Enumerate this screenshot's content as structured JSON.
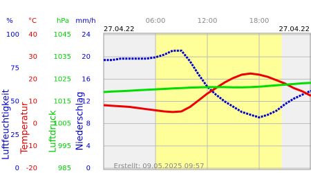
{
  "chart_data": {
    "type": "line",
    "date_left": "27.04.22",
    "date_right": "27.04.22",
    "footer": "Erstellt: 09.05.2025 09:57",
    "xlim": [
      0,
      24
    ],
    "xticks": [
      {
        "value": 6,
        "label": "06:00"
      },
      {
        "value": 12,
        "label": "12:00"
      },
      {
        "value": 18,
        "label": "18:00"
      }
    ],
    "daylight": [
      6,
      20.6
    ],
    "grid": true,
    "axes": [
      {
        "unit": "%",
        "label": "Luftfeuchtigkeit",
        "color": "#0000cc",
        "lim": [
          0,
          100
        ],
        "ticks": [
          0,
          25,
          50,
          75,
          100
        ]
      },
      {
        "unit": "°C",
        "label": "Temperatur",
        "color": "#dd0000",
        "lim": [
          -20,
          40
        ],
        "ticks": [
          -20,
          -10,
          0,
          10,
          20,
          30,
          40
        ]
      },
      {
        "unit": "hPa",
        "label": "Luftdruck",
        "color": "#00cc00",
        "lim": [
          985,
          1045
        ],
        "ticks": [
          985,
          995,
          1005,
          1015,
          1025,
          1035,
          1045
        ]
      },
      {
        "unit": "mm/h",
        "label": "Niederschlag",
        "color": "#0000cc",
        "lim": [
          0,
          24
        ],
        "ticks": [
          0,
          4,
          8,
          12,
          16,
          20,
          24
        ]
      }
    ],
    "x": [
      0,
      1,
      2,
      3,
      4,
      5,
      6,
      7,
      8,
      9,
      10,
      11,
      12,
      13,
      14,
      15,
      16,
      17,
      18,
      19,
      20,
      21,
      22,
      23,
      24
    ],
    "series": [
      {
        "axis": 0,
        "color": "#0000cc",
        "values": [
          81,
          81,
          82,
          82,
          82,
          82,
          83,
          85,
          88,
          88,
          80,
          70,
          61,
          55,
          50,
          46,
          42,
          40,
          38,
          40,
          43,
          48,
          52,
          55,
          58
        ]
      },
      {
        "axis": 1,
        "color": "#ee0000",
        "values": [
          8.3,
          8.0,
          7.8,
          7.5,
          7.0,
          6.5,
          6.0,
          5.5,
          5.2,
          5.5,
          7.5,
          10.5,
          13.5,
          16,
          18.5,
          20.5,
          22,
          22.5,
          22,
          21,
          19.5,
          18,
          16,
          14.5,
          12.5
        ]
      },
      {
        "axis": 2,
        "color": "#00dd00",
        "values": [
          1019.2,
          1019.4,
          1019.6,
          1019.8,
          1020,
          1020.2,
          1020.4,
          1020.6,
          1020.8,
          1021,
          1021.2,
          1021.3,
          1021.4,
          1021.4,
          1021.4,
          1021.3,
          1021.3,
          1021.4,
          1021.6,
          1021.9,
          1022.2,
          1022.5,
          1022.8,
          1023.1,
          1023.3
        ]
      }
    ]
  }
}
